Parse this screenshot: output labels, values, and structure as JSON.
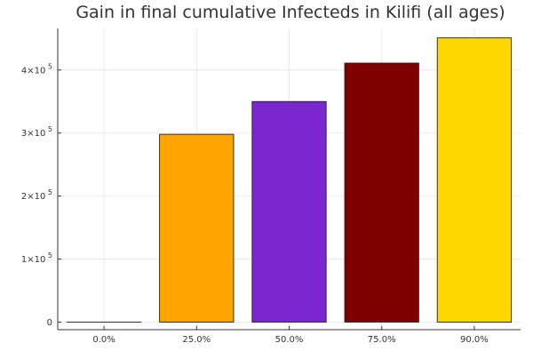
{
  "chart_data": {
    "type": "bar",
    "title": "Gain in final cumulative Infecteds in Kilifi (all ages)",
    "xlabel": "",
    "ylabel": "",
    "categories": [
      "0.0%",
      "25.0%",
      "50.0%",
      "75.0%",
      "90.0%"
    ],
    "values": [
      0,
      298000,
      350000,
      411000,
      451000
    ],
    "colors": [
      "#2b2b2b",
      "#FFA500",
      "#7B26CF",
      "#800000",
      "#FFD700"
    ],
    "ylim": [
      -12000,
      466000
    ],
    "yticks": [
      {
        "value": 0,
        "mantissa": "0",
        "exponent": ""
      },
      {
        "value": 100000,
        "mantissa": "1×10",
        "exponent": "5"
      },
      {
        "value": 200000,
        "mantissa": "2×10",
        "exponent": "5"
      },
      {
        "value": 300000,
        "mantissa": "3×10",
        "exponent": "5"
      },
      {
        "value": 400000,
        "mantissa": "4×10",
        "exponent": "5"
      }
    ],
    "grid": true,
    "legend": "none"
  }
}
